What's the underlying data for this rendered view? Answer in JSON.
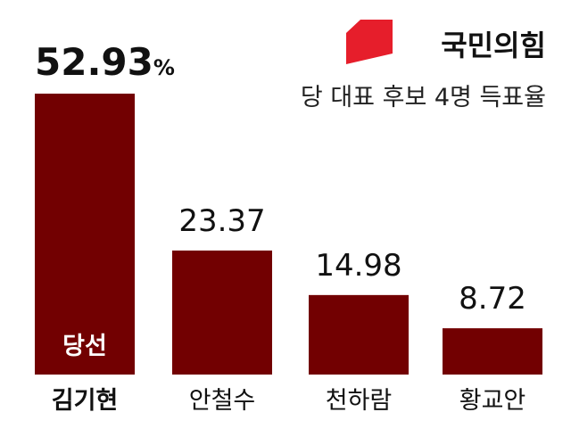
{
  "brand": {
    "name": "국민의힘",
    "accent_color": "#e61e2b"
  },
  "chart_data": {
    "type": "bar",
    "title": "당 대표 후보 4명 득표율",
    "categories": [
      "김기현",
      "안철수",
      "천하람",
      "황교안"
    ],
    "values": [
      52.93,
      23.37,
      14.98,
      8.72
    ],
    "value_labels": [
      "52.93",
      "23.37",
      "14.98",
      "8.72"
    ],
    "value_unit": "%",
    "winner_index": 0,
    "winner_badge": "당선",
    "bar_color": "#720001",
    "ylim": [
      0,
      52.93
    ],
    "grid": false,
    "legend": "none"
  }
}
